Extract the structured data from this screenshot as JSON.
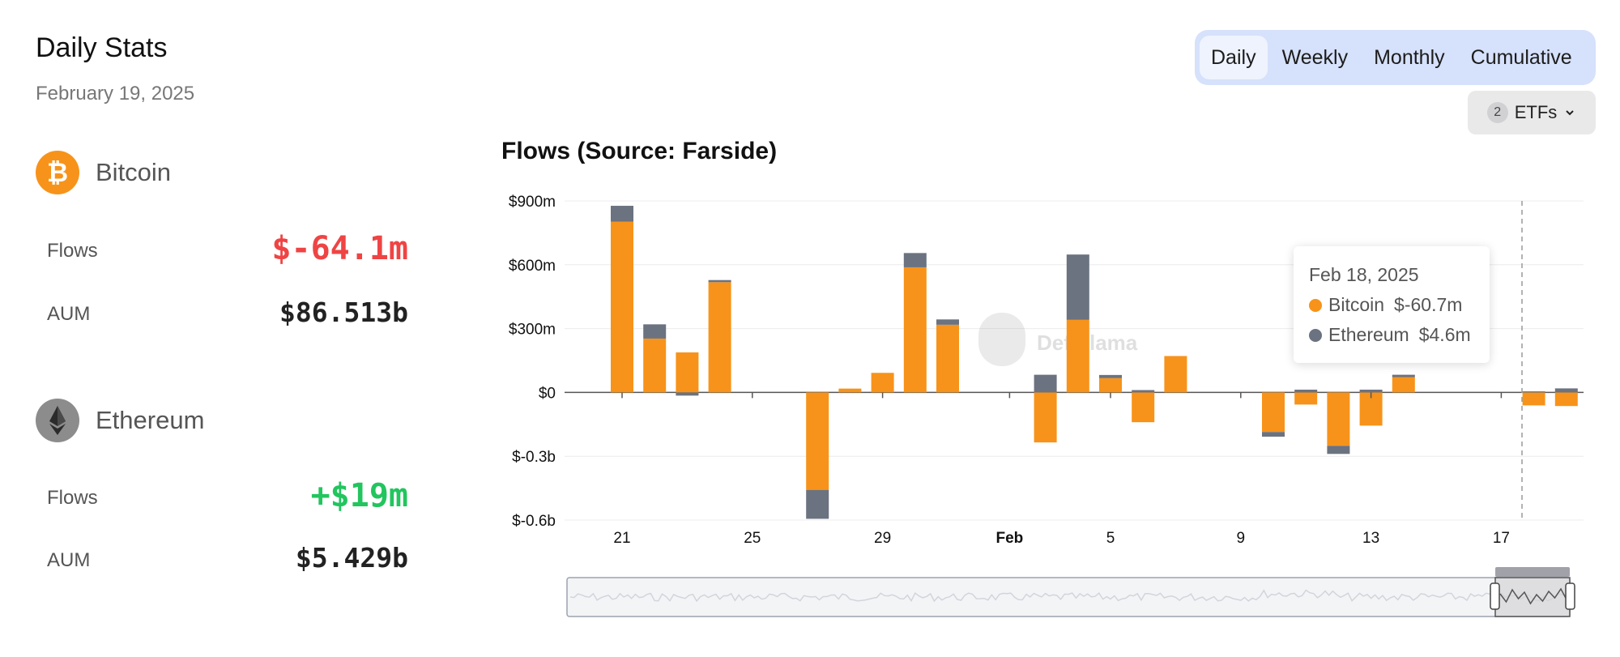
{
  "header": {
    "title": "Daily Stats",
    "date": "February 19, 2025"
  },
  "assets": [
    {
      "name": "Bitcoin",
      "icon": "bitcoin-icon",
      "color": "#f7931a",
      "flows_label": "Flows",
      "flows": "$-64.1m",
      "flows_color": "#ef4444",
      "aum_label": "AUM",
      "aum": "$86.513b"
    },
    {
      "name": "Ethereum",
      "icon": "ethereum-icon",
      "color": "#8c8c8c",
      "flows_label": "Flows",
      "flows": "+$19m",
      "flows_color": "#22c55e",
      "aum_label": "AUM",
      "aum": "$5.429b"
    }
  ],
  "period_tabs": [
    "Daily",
    "Weekly",
    "Monthly",
    "Cumulative"
  ],
  "active_tab": "Daily",
  "etf_filter": {
    "count": "2",
    "label": "ETFs"
  },
  "watermark": "DefiLlama",
  "tooltip": {
    "date": "Feb 18, 2025",
    "rows": [
      {
        "name": "Bitcoin",
        "value": "$-60.7m",
        "color": "#f7931a"
      },
      {
        "name": "Ethereum",
        "value": "$4.6m",
        "color": "#6b7280"
      }
    ]
  },
  "chart_data": {
    "type": "bar",
    "stacked": true,
    "title": "Flows (Source: Farside)",
    "xlabel": "",
    "ylabel": "",
    "ylim": [
      -600,
      900
    ],
    "yticks": [
      "$900m",
      "$600m",
      "$300m",
      "$0",
      "$-0.3b",
      "$-0.6b"
    ],
    "ytick_values": [
      900,
      600,
      300,
      0,
      -300,
      -600
    ],
    "xtick_labels": [
      "21",
      "25",
      "29",
      "Feb",
      "5",
      "9",
      "13",
      "17"
    ],
    "xtick_bold": [
      "Feb"
    ],
    "grid": true,
    "colors": {
      "Bitcoin": "#f7931a",
      "Ethereum": "#6b7280"
    },
    "categories": [
      "Jan 21",
      "Jan 22",
      "Jan 23",
      "Jan 24",
      "Jan 25",
      "Jan 26",
      "Jan 27",
      "Jan 28",
      "Jan 29",
      "Jan 30",
      "Jan 31",
      "Feb 1",
      "Feb 2",
      "Feb 3",
      "Feb 4",
      "Feb 5",
      "Feb 6",
      "Feb 7",
      "Feb 8",
      "Feb 9",
      "Feb 10",
      "Feb 11",
      "Feb 12",
      "Feb 13",
      "Feb 14",
      "Feb 15",
      "Feb 16",
      "Feb 17",
      "Feb 18",
      "Feb 19"
    ],
    "series": [
      {
        "name": "Bitcoin",
        "values": [
          802,
          253,
          188,
          518,
          0,
          0,
          -458,
          18,
          92,
          588,
          318,
          0,
          0,
          -235,
          341,
          67,
          -140,
          171,
          0,
          0,
          -186,
          -57,
          -251,
          -156,
          72,
          0,
          0,
          0,
          -61,
          -64
        ]
      },
      {
        "name": "Ethereum",
        "values": [
          75,
          67,
          -15,
          10,
          0,
          0,
          -136,
          0,
          0,
          67,
          25,
          0,
          0,
          83,
          307,
          15,
          11,
          0,
          0,
          0,
          -22,
          13,
          -38,
          13,
          11,
          0,
          0,
          0,
          5,
          19
        ]
      }
    ]
  }
}
